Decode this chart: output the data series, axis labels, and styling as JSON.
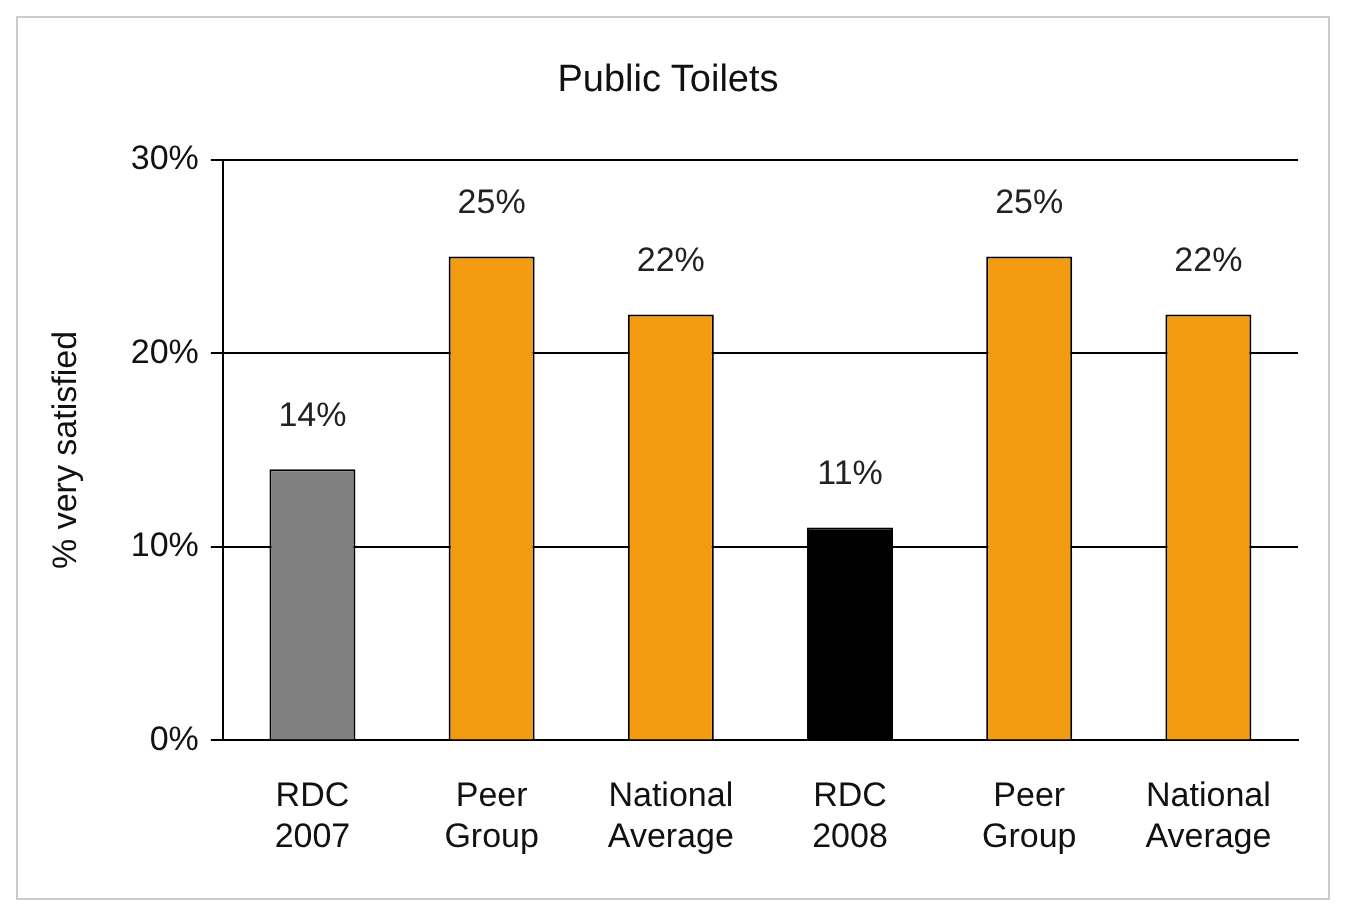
{
  "chart_data": {
    "type": "bar",
    "title": "Public Toilets",
    "ylabel": "% very satisfied",
    "categories": [
      "RDC 2007",
      "Peer Group",
      "National Average",
      "RDC 2008",
      "Peer Group",
      "National Average"
    ],
    "values": [
      14,
      25,
      22,
      11,
      25,
      22
    ],
    "colors": [
      "#808080",
      "#f39c12",
      "#f39c12",
      "#000000",
      "#f39c12",
      "#f39c12"
    ],
    "value_labels": [
      "14%",
      "25%",
      "22%",
      "11%",
      "25%",
      "22%"
    ],
    "ylim": [
      0,
      30
    ],
    "yticks": [
      {
        "value": 0,
        "label": "0%"
      },
      {
        "value": 10,
        "label": "10%"
      },
      {
        "value": 20,
        "label": "20%"
      },
      {
        "value": 30,
        "label": "30%"
      }
    ],
    "grid": "y",
    "legend": false
  }
}
